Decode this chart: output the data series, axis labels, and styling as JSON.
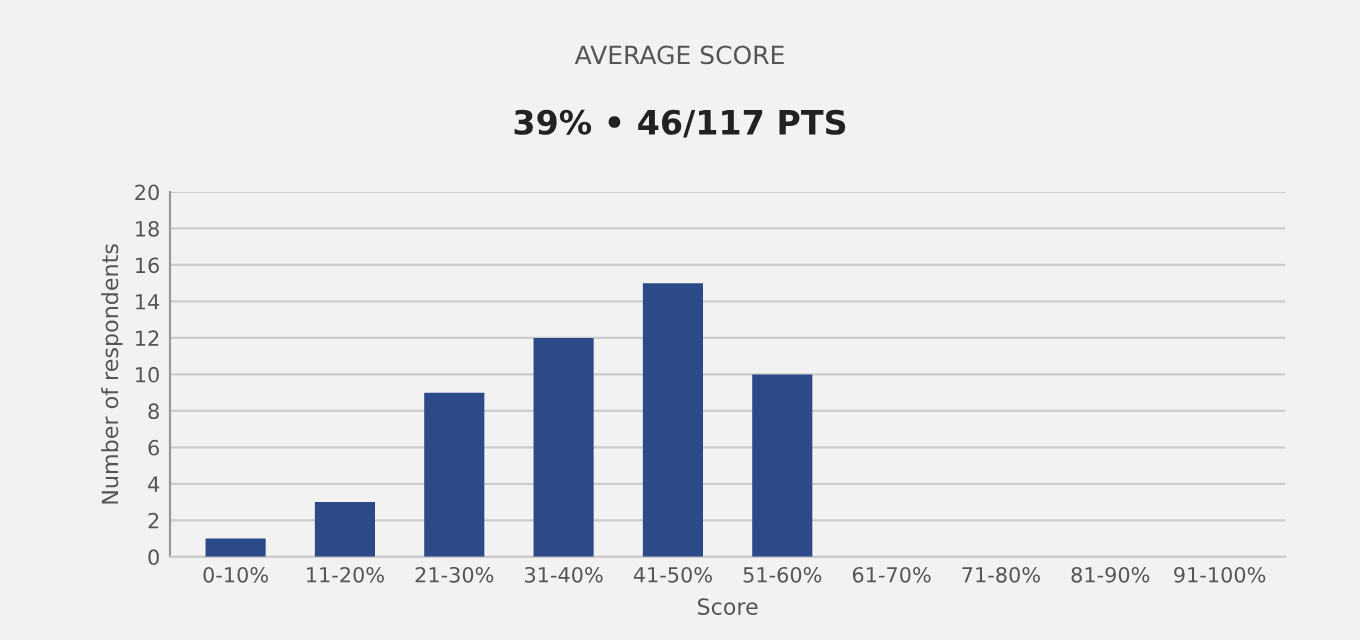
{
  "chart_data": {
    "type": "bar",
    "title": "AVERAGE SCORE",
    "subtitle": "39% • 46/117 PTS",
    "xlabel": "Score",
    "ylabel": "Number of respondents",
    "categories": [
      "0-10%",
      "11-20%",
      "21-30%",
      "31-40%",
      "41-50%",
      "51-60%",
      "61-70%",
      "71-80%",
      "81-90%",
      "91-100%"
    ],
    "values": [
      1,
      3,
      9,
      12,
      15,
      10,
      0,
      0,
      0,
      0
    ],
    "color": "#2d4a88",
    "ylim": [
      0,
      20
    ],
    "yticks": [
      0,
      2,
      4,
      6,
      8,
      10,
      12,
      14,
      16,
      18,
      20
    ],
    "grid": "y",
    "legend": false
  }
}
